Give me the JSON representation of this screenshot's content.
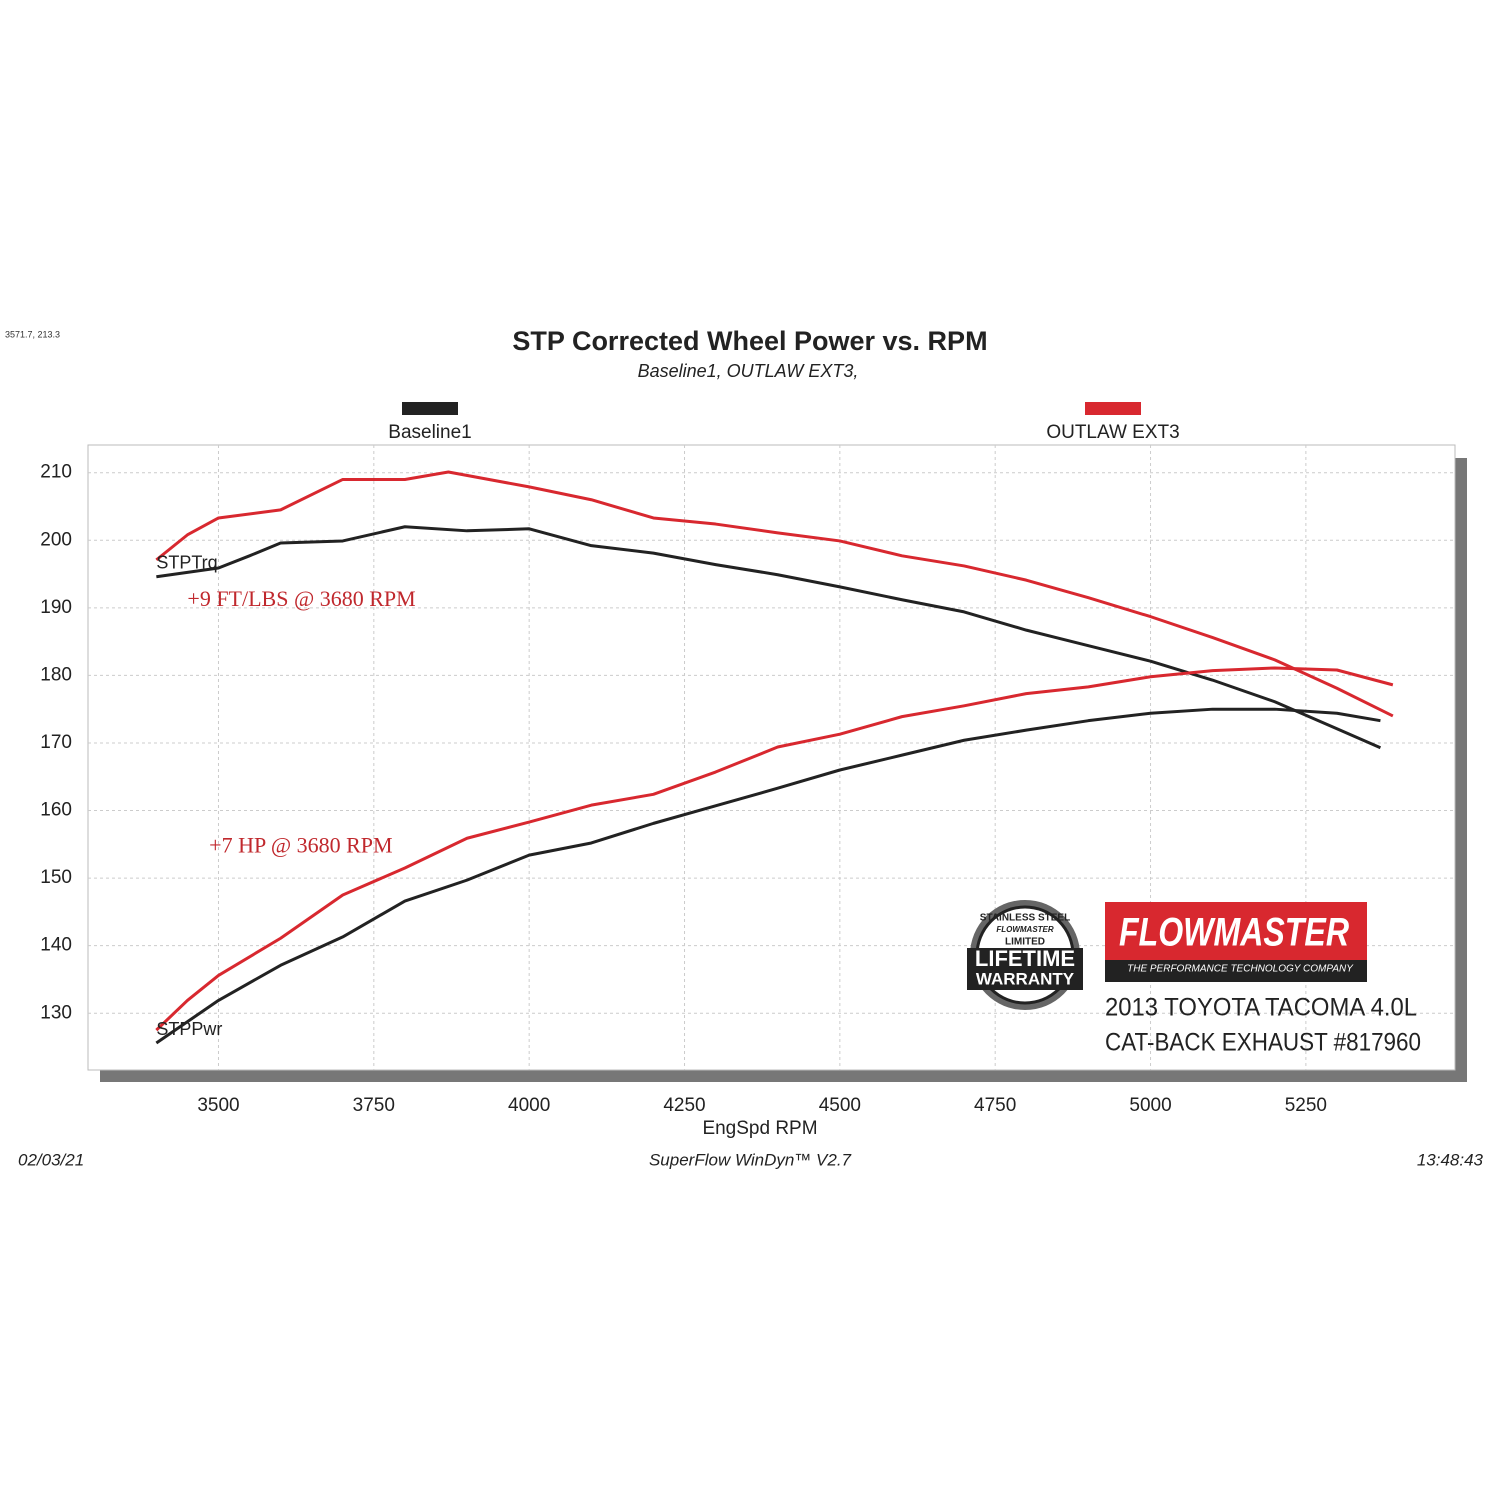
{
  "chart_data": {
    "type": "line",
    "corner_note": "3571.7, 213.3",
    "title": "STP Corrected Wheel Power vs. RPM",
    "subtitle": "Baseline1,  OUTLAW EXT3,",
    "x_label": "EngSpd  RPM",
    "xlim": [
      3290,
      5490
    ],
    "xticks": [
      3500,
      3750,
      4000,
      4250,
      4500,
      4750,
      5000,
      5250
    ],
    "ylim": [
      121.6,
      214.1
    ],
    "yticks": [
      130,
      140,
      150,
      160,
      170,
      180,
      190,
      200,
      210
    ],
    "grid": true,
    "curve_labels": [
      {
        "text": "STPTrq",
        "x": 3400,
        "y": 196.5
      },
      {
        "text": "STPPwr",
        "x": 3400,
        "y": 127.5
      }
    ],
    "annotations": [
      {
        "text": "+9 FT/LBS @ 3680 RPM",
        "x": 3450,
        "y": 191
      },
      {
        "text": "+7 HP @ 3680 RPM",
        "x": 3485,
        "y": 154.5
      }
    ],
    "series": [
      {
        "name": "Baseline1",
        "color": "#222222",
        "lines": [
          {
            "x": [
              3400,
              3500,
              3550,
              3600,
              3700,
              3800,
              3900,
              4000,
              4100,
              4200,
              4300,
              4400,
              4500,
              4600,
              4700,
              4800,
              4900,
              5000,
              5100,
              5200,
              5300,
              5370
            ],
            "values": [
              194.6,
              195.9,
              197.7,
              199.6,
              199.9,
              202,
              201.4,
              201.7,
              199.2,
              198.1,
              196.4,
              194.9,
              193.1,
              191.2,
              189.4,
              186.7,
              184.4,
              182.1,
              179.3,
              176.1,
              172.1,
              169.3
            ]
          },
          {
            "x": [
              3400,
              3500,
              3600,
              3700,
              3800,
              3900,
              4000,
              4100,
              4200,
              4300,
              4400,
              4500,
              4600,
              4700,
              4800,
              4900,
              5000,
              5100,
              5200,
              5300,
              5370
            ],
            "values": [
              125.6,
              131.9,
              137.1,
              141.3,
              146.6,
              149.7,
              153.4,
              155.2,
              158.1,
              160.7,
              163.3,
              166,
              168.2,
              170.4,
              171.9,
              173.3,
              174.4,
              175,
              175,
              174.4,
              173.3
            ]
          }
        ]
      },
      {
        "name": "OUTLAW EXT3",
        "color": "#d8282f",
        "lines": [
          {
            "x": [
              3400,
              3450,
              3500,
              3600,
              3700,
              3800,
              3870,
              4000,
              4100,
              4200,
              4300,
              4400,
              4500,
              4600,
              4700,
              4800,
              4900,
              5000,
              5100,
              5200,
              5300,
              5390
            ],
            "values": [
              197.1,
              200.8,
              203.3,
              204.5,
              209,
              209,
              210.1,
              207.9,
              206,
              203.3,
              202.4,
              201.1,
              199.9,
              197.7,
              196.2,
              194.1,
              191.5,
              188.7,
              185.6,
              182.3,
              178.1,
              174
            ]
          },
          {
            "x": [
              3400,
              3450,
              3500,
              3600,
              3700,
              3800,
              3900,
              4000,
              4100,
              4200,
              4300,
              4400,
              4500,
              4600,
              4700,
              4800,
              4900,
              5000,
              5100,
              5200,
              5300,
              5390
            ],
            "values": [
              127.5,
              131.9,
              135.6,
              141.1,
              147.5,
              151.5,
              155.9,
              158.3,
              160.8,
              162.4,
              165.7,
              169.4,
              171.3,
              173.9,
              175.5,
              177.3,
              178.3,
              179.8,
              180.7,
              181.1,
              180.8,
              178.6
            ]
          }
        ]
      }
    ],
    "footer_left": "02/03/21",
    "footer_center": "SuperFlow WinDyn™ V2.7",
    "footer_right": "13:48:43",
    "badge": {
      "top": "STAINLESS STEEL",
      "brand": "FLOWMASTER",
      "middle": "LIMITED",
      "line1": "LIFETIME",
      "line2": "WARRANTY"
    },
    "logo": {
      "brand": "FLOWMASTER",
      "tagline": "THE PERFORMANCE TECHNOLOGY COMPANY",
      "line1": "2013 TOYOTA TACOMA 4.0L",
      "line2": "CAT-BACK EXHAUST #817960"
    }
  }
}
